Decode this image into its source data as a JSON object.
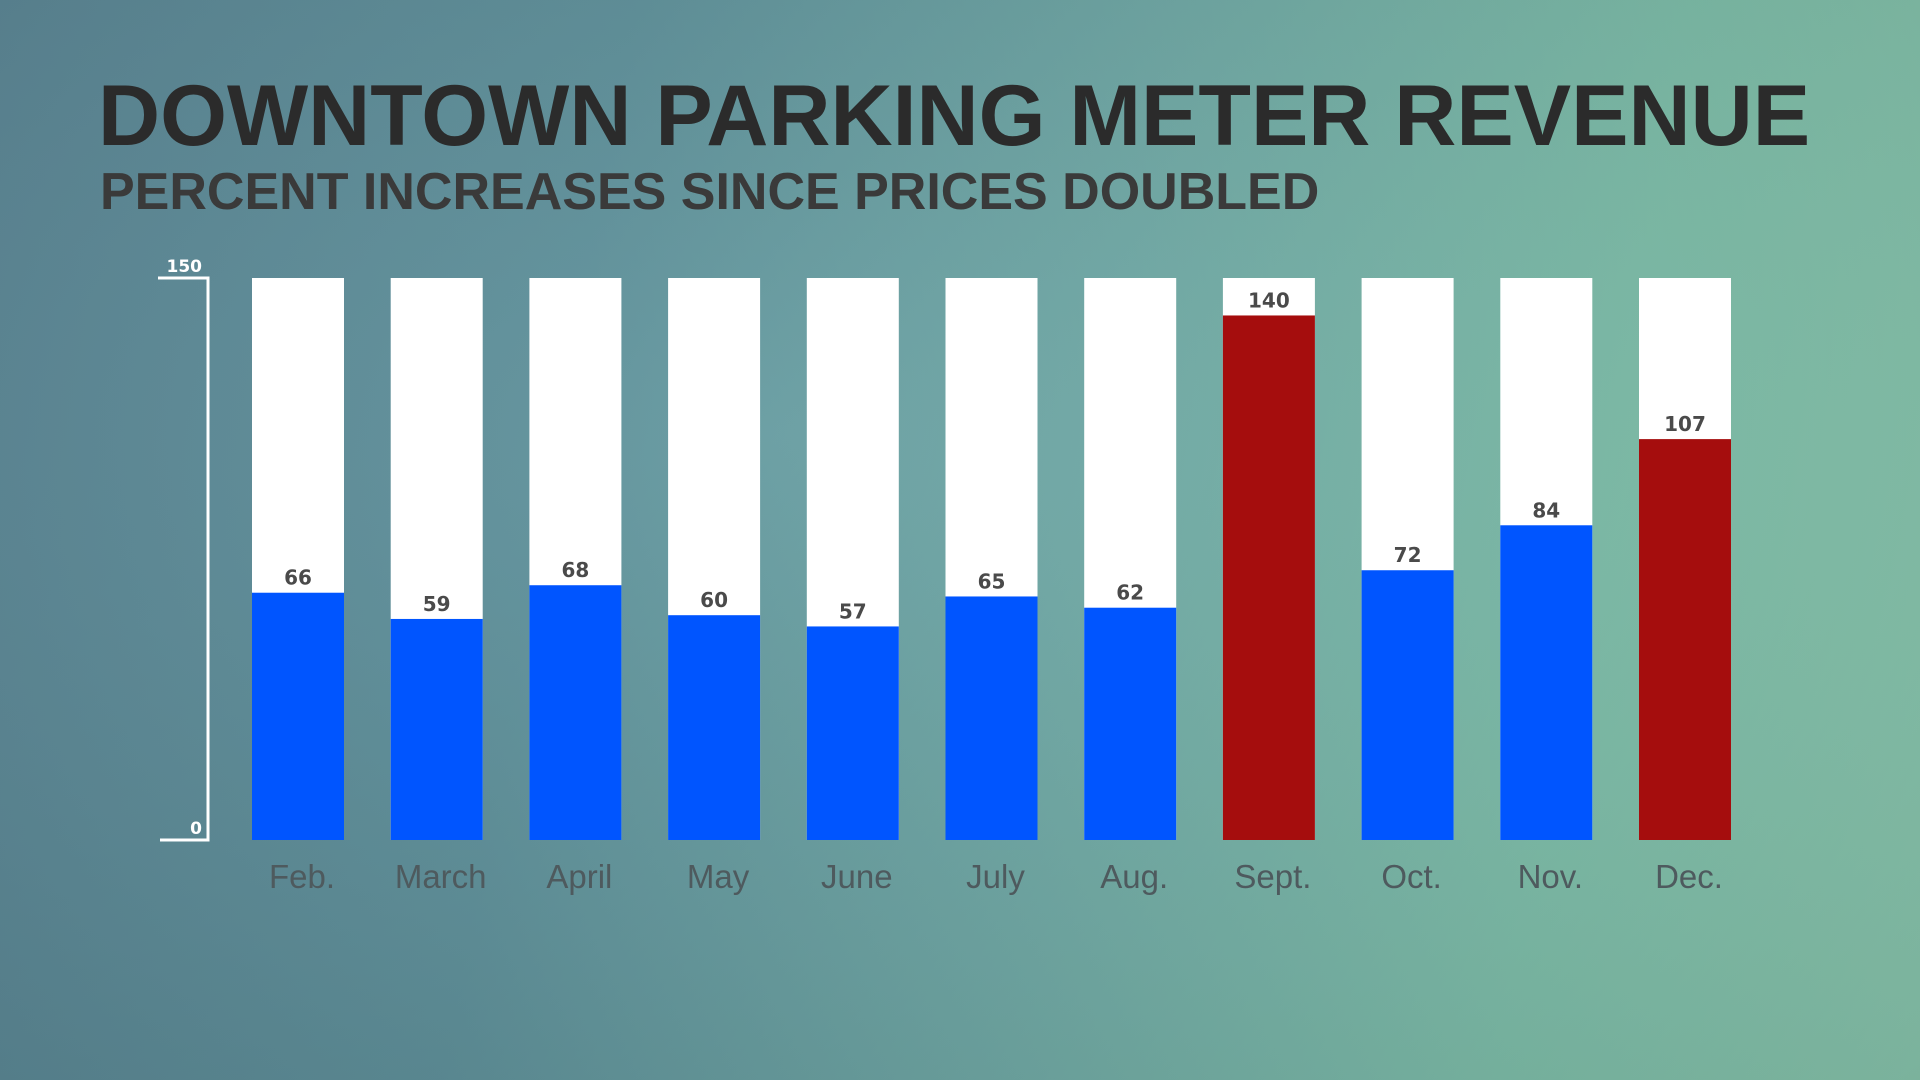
{
  "chart_data": {
    "type": "bar",
    "title": "DOWNTOWN PARKING METER REVENUE",
    "subtitle": "PERCENT INCREASES SINCE PRICES DOUBLED",
    "xlabel": "",
    "ylabel": "",
    "ylim": [
      0,
      150
    ],
    "yticks": [
      "0",
      "150"
    ],
    "grid": false,
    "categories": [
      "Feb.",
      "March",
      "April",
      "May",
      "June",
      "July",
      "Aug.",
      "Sept.",
      "Oct.",
      "Nov.",
      "Dec."
    ],
    "values": [
      66,
      59,
      68,
      60,
      57,
      65,
      62,
      140,
      72,
      84,
      107
    ],
    "highlight": [
      false,
      false,
      false,
      false,
      false,
      false,
      false,
      true,
      false,
      false,
      true
    ],
    "colors": {
      "normal": "#0055ff",
      "highlight": "#a50d0d",
      "track": "#ffffff",
      "label": "#4a4a4a",
      "axis": "#ffffff"
    }
  }
}
